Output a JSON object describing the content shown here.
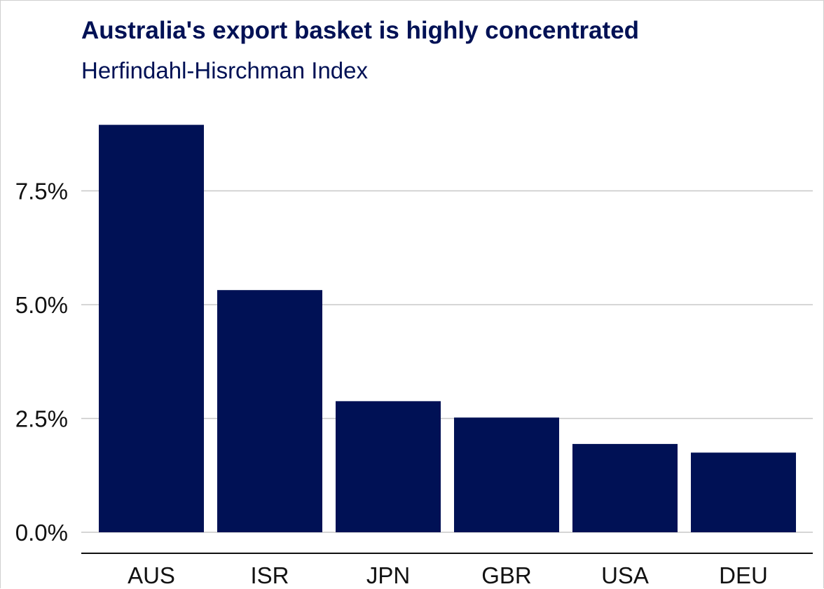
{
  "chart_data": {
    "type": "bar",
    "title": "Australia's export basket is highly concentrated",
    "subtitle": "Herfindahl-Hisrchman Index",
    "categories": [
      "AUS",
      "ISR",
      "JPN",
      "GBR",
      "USA",
      "DEU"
    ],
    "values": [
      8.95,
      5.32,
      2.88,
      2.52,
      1.94,
      1.75
    ],
    "ylim": [
      0,
      9.5
    ],
    "yticks": [
      0,
      2.5,
      5.0,
      7.5
    ],
    "ytick_labels": [
      "0.0%",
      "2.5%",
      "5.0%",
      "7.5%"
    ],
    "grid": "horizontal",
    "bar_color": "#001155",
    "grid_color": "#c8c8c8",
    "xlabel": "",
    "ylabel": ""
  }
}
